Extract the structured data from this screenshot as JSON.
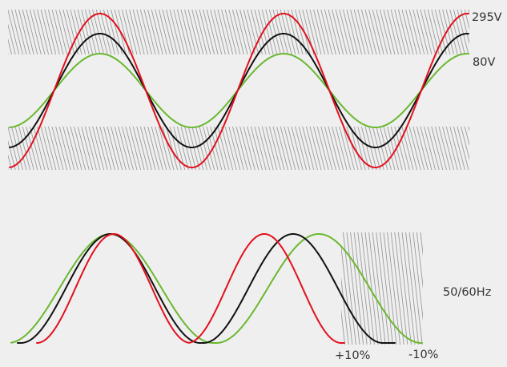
{
  "labels": {
    "voltage_high": "295V",
    "voltage_low": "80V",
    "frequency": "50/60Hz",
    "plus_tolerance": "+10%",
    "minus_tolerance": "-10%"
  },
  "colors": {
    "background": "#efefef",
    "red": "#e3101d",
    "black": "#111111",
    "green": "#6ab82e",
    "hatch": "#9a9a9a",
    "text": "#333333"
  }
}
